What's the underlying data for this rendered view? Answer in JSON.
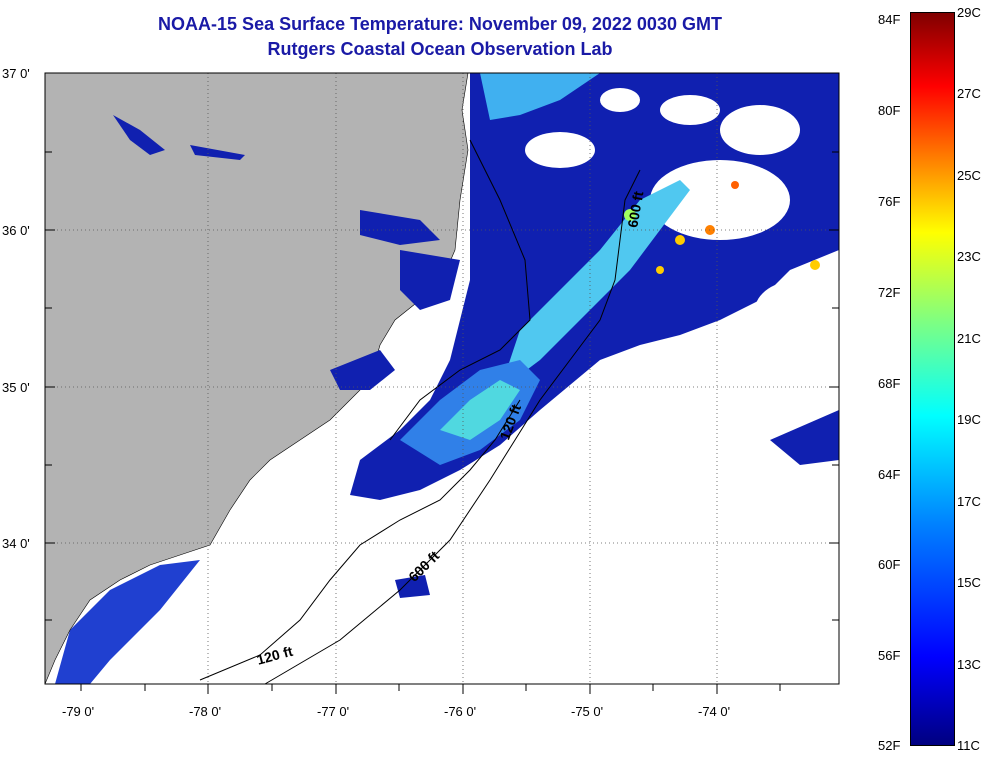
{
  "title": {
    "line1": "NOAA-15 Sea Surface Temperature:  November 09, 2022 0030 GMT",
    "line2": "Rutgers Coastal Ocean Observation Lab"
  },
  "map": {
    "lat_labels": [
      "37 0'",
      "36 0'",
      "35 0'",
      "34 0'"
    ],
    "lon_labels": [
      "-79 0'",
      "-78 0'",
      "-77 0'",
      "-76 0'",
      "-75 0'",
      "-74 0'"
    ],
    "contour_labels": [
      "600 ft",
      "120 ft",
      "600 ft",
      "120 ft"
    ],
    "land_color": "#b3b3b3",
    "no_data_color": "#ffffff"
  },
  "colorbar": {
    "fahrenheit_labels": [
      "84F",
      "80F",
      "76F",
      "72F",
      "68F",
      "64F",
      "60F",
      "56F",
      "52F"
    ],
    "celsius_labels": [
      "29C",
      "27C",
      "25C",
      "23C",
      "21C",
      "19C",
      "17C",
      "15C",
      "13C",
      "11C"
    ],
    "colors": [
      "#000080",
      "#0000ff",
      "#0080ff",
      "#00ffff",
      "#80ff80",
      "#ffff00",
      "#ff8000",
      "#ff0000",
      "#800000"
    ]
  }
}
